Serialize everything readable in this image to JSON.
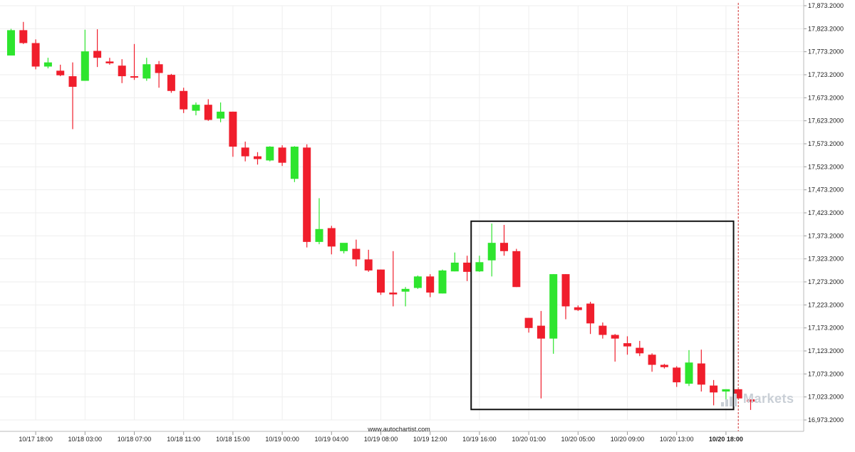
{
  "chart_data": {
    "type": "candlestick",
    "colors": {
      "up": "#2ee52e",
      "down": "#f01e2c",
      "grid": "#eeeeee",
      "box": "#111111",
      "cursor": "#d03030"
    },
    "y_ticks": [
      "17,873.2000",
      "17,823.2000",
      "17,773.2000",
      "17,723.2000",
      "17,673.2000",
      "17,623.2000",
      "17,573.2000",
      "17,523.2000",
      "17,473.2000",
      "17,423.2000",
      "17,373.2000",
      "17,323.2000",
      "17,273.2000",
      "17,223.2000",
      "17,173.2000",
      "17,123.2000",
      "17,073.2000",
      "17,023.2000",
      "16,973.2000"
    ],
    "ylim": [
      16973.2,
      17873.2
    ],
    "x_ticks": [
      {
        "label": "10/17 18:00",
        "index": 2
      },
      {
        "label": "10/18 03:00",
        "index": 6
      },
      {
        "label": "10/18 07:00",
        "index": 10
      },
      {
        "label": "10/18 11:00",
        "index": 14
      },
      {
        "label": "10/18 15:00",
        "index": 18
      },
      {
        "label": "10/19 00:00",
        "index": 22
      },
      {
        "label": "10/19 04:00",
        "index": 26
      },
      {
        "label": "10/19 08:00",
        "index": 30
      },
      {
        "label": "10/19 12:00",
        "index": 34
      },
      {
        "label": "10/19 16:00",
        "index": 38
      },
      {
        "label": "10/20 01:00",
        "index": 42
      },
      {
        "label": "10/20 05:00",
        "index": 46
      },
      {
        "label": "10/20 09:00",
        "index": 50
      },
      {
        "label": "10/20 13:00",
        "index": 54
      },
      {
        "label": "10/20 18:00",
        "index": 58,
        "bold": true
      }
    ],
    "candles": [
      {
        "o": 17765,
        "h": 17823,
        "l": 17765,
        "c": 17820
      },
      {
        "o": 17820,
        "h": 17838,
        "l": 17790,
        "c": 17792
      },
      {
        "o": 17792,
        "h": 17800,
        "l": 17735,
        "c": 17741
      },
      {
        "o": 17741,
        "h": 17760,
        "l": 17737,
        "c": 17750
      },
      {
        "o": 17732,
        "h": 17745,
        "l": 17720,
        "c": 17722
      },
      {
        "o": 17720,
        "h": 17750,
        "l": 17605,
        "c": 17697
      },
      {
        "o": 17710,
        "h": 17821,
        "l": 17710,
        "c": 17774
      },
      {
        "o": 17775,
        "h": 17822,
        "l": 17740,
        "c": 17760
      },
      {
        "o": 17752,
        "h": 17760,
        "l": 17745,
        "c": 17748
      },
      {
        "o": 17743,
        "h": 17757,
        "l": 17705,
        "c": 17720
      },
      {
        "o": 17720,
        "h": 17790,
        "l": 17712,
        "c": 17717
      },
      {
        "o": 17715,
        "h": 17760,
        "l": 17710,
        "c": 17746
      },
      {
        "o": 17746,
        "h": 17753,
        "l": 17695,
        "c": 17727
      },
      {
        "o": 17723,
        "h": 17725,
        "l": 17684,
        "c": 17688
      },
      {
        "o": 17688,
        "h": 17695,
        "l": 17640,
        "c": 17648
      },
      {
        "o": 17645,
        "h": 17663,
        "l": 17635,
        "c": 17658
      },
      {
        "o": 17658,
        "h": 17670,
        "l": 17623,
        "c": 17625
      },
      {
        "o": 17628,
        "h": 17663,
        "l": 17620,
        "c": 17643
      },
      {
        "o": 17643,
        "h": 17643,
        "l": 17545,
        "c": 17567
      },
      {
        "o": 17565,
        "h": 17578,
        "l": 17535,
        "c": 17546
      },
      {
        "o": 17546,
        "h": 17555,
        "l": 17528,
        "c": 17540
      },
      {
        "o": 17537,
        "h": 17568,
        "l": 17535,
        "c": 17567
      },
      {
        "o": 17565,
        "h": 17570,
        "l": 17525,
        "c": 17532
      },
      {
        "o": 17497,
        "h": 17568,
        "l": 17490,
        "c": 17567
      },
      {
        "o": 17565,
        "h": 17572,
        "l": 17348,
        "c": 17360
      },
      {
        "o": 17360,
        "h": 17455,
        "l": 17355,
        "c": 17388
      },
      {
        "o": 17390,
        "h": 17395,
        "l": 17333,
        "c": 17350
      },
      {
        "o": 17340,
        "h": 17350,
        "l": 17335,
        "c": 17358
      },
      {
        "o": 17345,
        "h": 17365,
        "l": 17307,
        "c": 17322
      },
      {
        "o": 17322,
        "h": 17343,
        "l": 17295,
        "c": 17298
      },
      {
        "o": 17300,
        "h": 17300,
        "l": 17245,
        "c": 17250
      },
      {
        "o": 17250,
        "h": 17340,
        "l": 17220,
        "c": 17246
      },
      {
        "o": 17252,
        "h": 17262,
        "l": 17220,
        "c": 17258
      },
      {
        "o": 17260,
        "h": 17287,
        "l": 17258,
        "c": 17285
      },
      {
        "o": 17285,
        "h": 17290,
        "l": 17240,
        "c": 17250
      },
      {
        "o": 17248,
        "h": 17300,
        "l": 17248,
        "c": 17298
      },
      {
        "o": 17296,
        "h": 17337,
        "l": 17296,
        "c": 17315
      },
      {
        "o": 17315,
        "h": 17330,
        "l": 17275,
        "c": 17295
      },
      {
        "o": 17296,
        "h": 17330,
        "l": 17295,
        "c": 17316
      },
      {
        "o": 17320,
        "h": 17400,
        "l": 17285,
        "c": 17358
      },
      {
        "o": 17358,
        "h": 17397,
        "l": 17330,
        "c": 17340
      },
      {
        "o": 17340,
        "h": 17345,
        "l": 17262,
        "c": 17262
      },
      {
        "o": 17195,
        "h": 17195,
        "l": 17163,
        "c": 17173
      },
      {
        "o": 17178,
        "h": 17210,
        "l": 17020,
        "c": 17150
      },
      {
        "o": 17150,
        "h": 17290,
        "l": 17117,
        "c": 17290
      },
      {
        "o": 17290,
        "h": 17290,
        "l": 17192,
        "c": 17220
      },
      {
        "o": 17218,
        "h": 17222,
        "l": 17210,
        "c": 17212
      },
      {
        "o": 17226,
        "h": 17230,
        "l": 17160,
        "c": 17183
      },
      {
        "o": 17178,
        "h": 17185,
        "l": 17150,
        "c": 17158
      },
      {
        "o": 17158,
        "h": 17160,
        "l": 17100,
        "c": 17150
      },
      {
        "o": 17140,
        "h": 17155,
        "l": 17115,
        "c": 17133
      },
      {
        "o": 17130,
        "h": 17145,
        "l": 17112,
        "c": 17118
      },
      {
        "o": 17115,
        "h": 17118,
        "l": 17078,
        "c": 17093
      },
      {
        "o": 17093,
        "h": 17095,
        "l": 17085,
        "c": 17088
      },
      {
        "o": 17087,
        "h": 17090,
        "l": 17045,
        "c": 17055
      },
      {
        "o": 17052,
        "h": 17125,
        "l": 17047,
        "c": 17098
      },
      {
        "o": 17096,
        "h": 17126,
        "l": 17035,
        "c": 17050
      },
      {
        "o": 17048,
        "h": 17060,
        "l": 17005,
        "c": 17033
      },
      {
        "o": 17035,
        "h": 17040,
        "l": 17005,
        "c": 17040
      },
      {
        "o": 17040,
        "h": 17040,
        "l": 17020,
        "c": 17020
      },
      {
        "o": 17018,
        "h": 17018,
        "l": 16995,
        "c": 17013
      }
    ],
    "highlight_box": {
      "start_index": 38,
      "end_index": 59,
      "ymin": 16996,
      "ymax": 17405
    },
    "cursor_index": 59
  },
  "footer": {
    "source": "www.autochartist.com"
  },
  "watermark": {
    "text": "Markets"
  }
}
